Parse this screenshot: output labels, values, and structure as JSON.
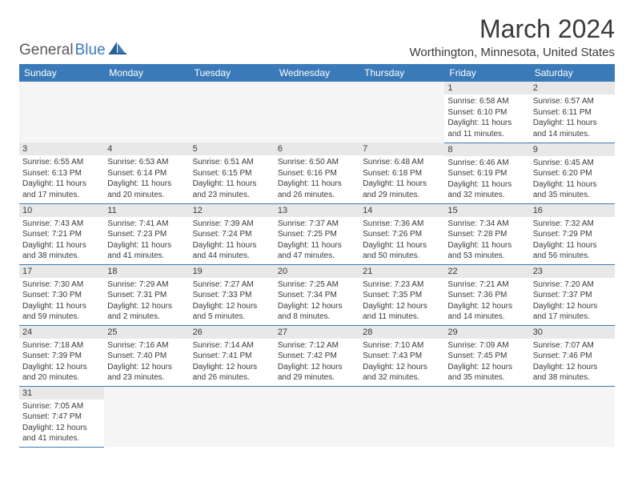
{
  "logo": {
    "text1": "General",
    "text2": "Blue"
  },
  "title": "March 2024",
  "location": "Worthington, Minnesota, United States",
  "colors": {
    "header_bg": "#3a7ab8",
    "header_text": "#ffffff",
    "daynum_bg": "#e8e8e8",
    "border": "#3a7ab8",
    "text": "#3a3a3a",
    "logo_gray": "#5a5a5a",
    "logo_blue": "#3a7ab8"
  },
  "weekdays": [
    "Sunday",
    "Monday",
    "Tuesday",
    "Wednesday",
    "Thursday",
    "Friday",
    "Saturday"
  ],
  "weeks": [
    [
      null,
      null,
      null,
      null,
      null,
      {
        "n": "1",
        "sr": "6:58 AM",
        "ss": "6:10 PM",
        "dl": "11 hours and 11 minutes."
      },
      {
        "n": "2",
        "sr": "6:57 AM",
        "ss": "6:11 PM",
        "dl": "11 hours and 14 minutes."
      }
    ],
    [
      {
        "n": "3",
        "sr": "6:55 AM",
        "ss": "6:13 PM",
        "dl": "11 hours and 17 minutes."
      },
      {
        "n": "4",
        "sr": "6:53 AM",
        "ss": "6:14 PM",
        "dl": "11 hours and 20 minutes."
      },
      {
        "n": "5",
        "sr": "6:51 AM",
        "ss": "6:15 PM",
        "dl": "11 hours and 23 minutes."
      },
      {
        "n": "6",
        "sr": "6:50 AM",
        "ss": "6:16 PM",
        "dl": "11 hours and 26 minutes."
      },
      {
        "n": "7",
        "sr": "6:48 AM",
        "ss": "6:18 PM",
        "dl": "11 hours and 29 minutes."
      },
      {
        "n": "8",
        "sr": "6:46 AM",
        "ss": "6:19 PM",
        "dl": "11 hours and 32 minutes."
      },
      {
        "n": "9",
        "sr": "6:45 AM",
        "ss": "6:20 PM",
        "dl": "11 hours and 35 minutes."
      }
    ],
    [
      {
        "n": "10",
        "sr": "7:43 AM",
        "ss": "7:21 PM",
        "dl": "11 hours and 38 minutes."
      },
      {
        "n": "11",
        "sr": "7:41 AM",
        "ss": "7:23 PM",
        "dl": "11 hours and 41 minutes."
      },
      {
        "n": "12",
        "sr": "7:39 AM",
        "ss": "7:24 PM",
        "dl": "11 hours and 44 minutes."
      },
      {
        "n": "13",
        "sr": "7:37 AM",
        "ss": "7:25 PM",
        "dl": "11 hours and 47 minutes."
      },
      {
        "n": "14",
        "sr": "7:36 AM",
        "ss": "7:26 PM",
        "dl": "11 hours and 50 minutes."
      },
      {
        "n": "15",
        "sr": "7:34 AM",
        "ss": "7:28 PM",
        "dl": "11 hours and 53 minutes."
      },
      {
        "n": "16",
        "sr": "7:32 AM",
        "ss": "7:29 PM",
        "dl": "11 hours and 56 minutes."
      }
    ],
    [
      {
        "n": "17",
        "sr": "7:30 AM",
        "ss": "7:30 PM",
        "dl": "11 hours and 59 minutes."
      },
      {
        "n": "18",
        "sr": "7:29 AM",
        "ss": "7:31 PM",
        "dl": "12 hours and 2 minutes."
      },
      {
        "n": "19",
        "sr": "7:27 AM",
        "ss": "7:33 PM",
        "dl": "12 hours and 5 minutes."
      },
      {
        "n": "20",
        "sr": "7:25 AM",
        "ss": "7:34 PM",
        "dl": "12 hours and 8 minutes."
      },
      {
        "n": "21",
        "sr": "7:23 AM",
        "ss": "7:35 PM",
        "dl": "12 hours and 11 minutes."
      },
      {
        "n": "22",
        "sr": "7:21 AM",
        "ss": "7:36 PM",
        "dl": "12 hours and 14 minutes."
      },
      {
        "n": "23",
        "sr": "7:20 AM",
        "ss": "7:37 PM",
        "dl": "12 hours and 17 minutes."
      }
    ],
    [
      {
        "n": "24",
        "sr": "7:18 AM",
        "ss": "7:39 PM",
        "dl": "12 hours and 20 minutes."
      },
      {
        "n": "25",
        "sr": "7:16 AM",
        "ss": "7:40 PM",
        "dl": "12 hours and 23 minutes."
      },
      {
        "n": "26",
        "sr": "7:14 AM",
        "ss": "7:41 PM",
        "dl": "12 hours and 26 minutes."
      },
      {
        "n": "27",
        "sr": "7:12 AM",
        "ss": "7:42 PM",
        "dl": "12 hours and 29 minutes."
      },
      {
        "n": "28",
        "sr": "7:10 AM",
        "ss": "7:43 PM",
        "dl": "12 hours and 32 minutes."
      },
      {
        "n": "29",
        "sr": "7:09 AM",
        "ss": "7:45 PM",
        "dl": "12 hours and 35 minutes."
      },
      {
        "n": "30",
        "sr": "7:07 AM",
        "ss": "7:46 PM",
        "dl": "12 hours and 38 minutes."
      }
    ],
    [
      {
        "n": "31",
        "sr": "7:05 AM",
        "ss": "7:47 PM",
        "dl": "12 hours and 41 minutes."
      },
      null,
      null,
      null,
      null,
      null,
      null
    ]
  ],
  "labels": {
    "sunrise": "Sunrise: ",
    "sunset": "Sunset: ",
    "daylight": "Daylight: "
  }
}
